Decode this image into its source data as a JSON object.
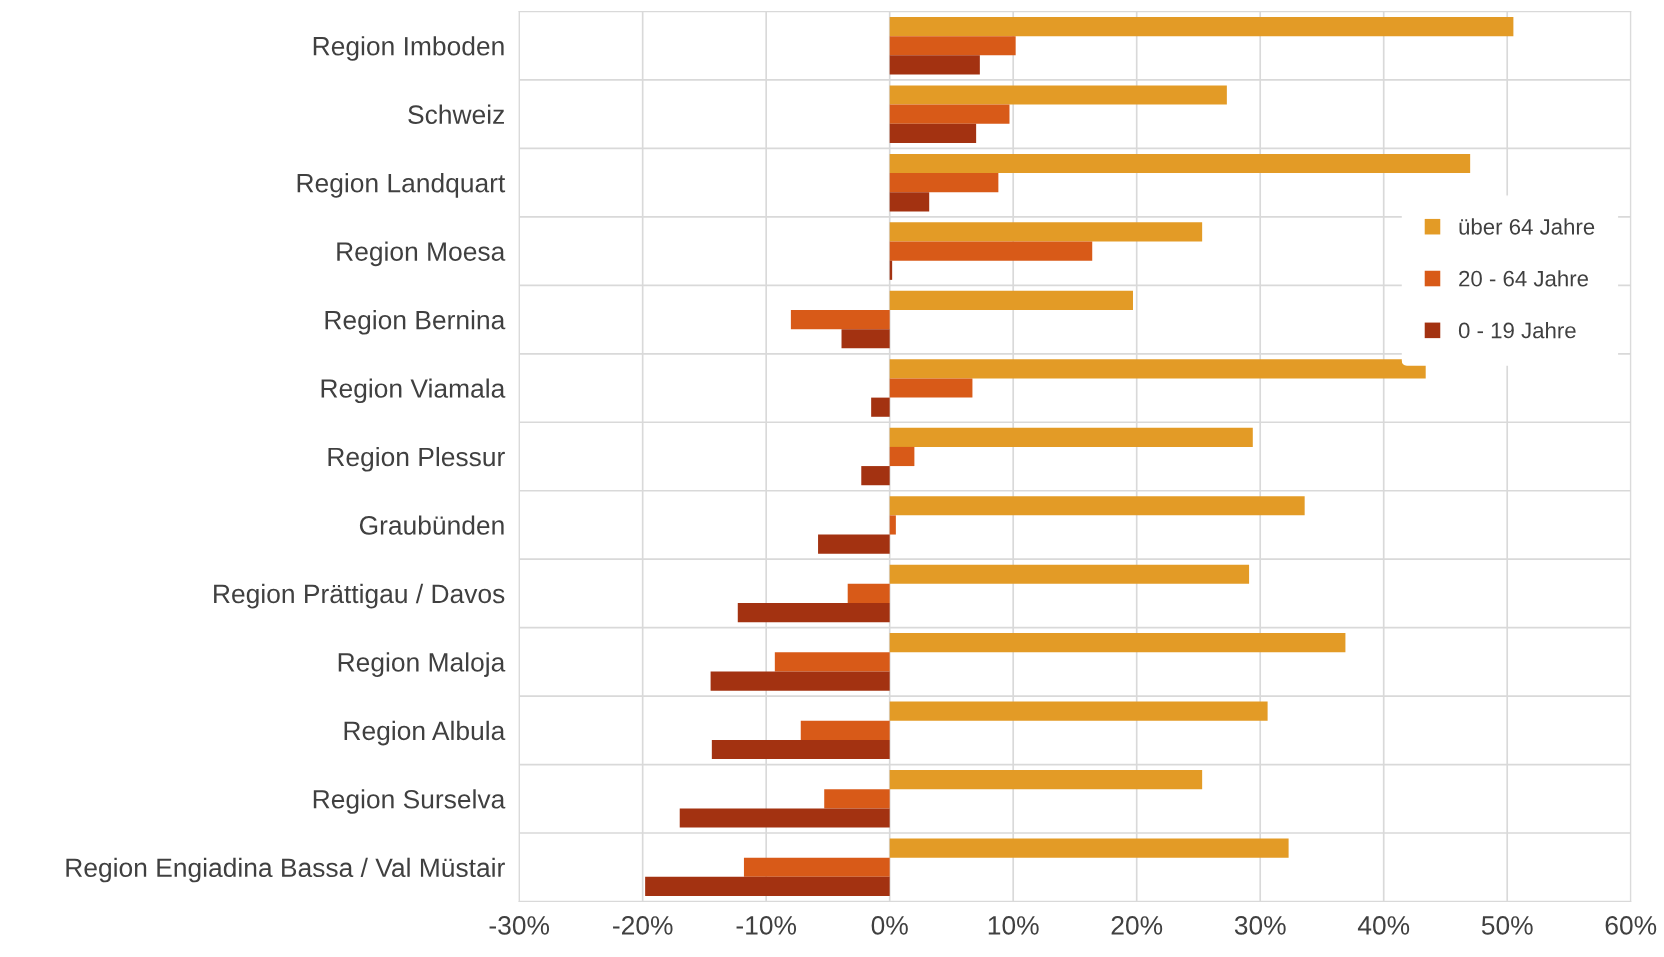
{
  "chart_data": {
    "type": "bar",
    "orientation": "horizontal",
    "categories": [
      "Region Imboden",
      "Schweiz",
      "Region Landquart",
      "Region Moesa",
      "Region Bernina",
      "Region Viamala",
      "Region Plessur",
      "Graubünden",
      "Region Prättigau / Davos",
      "Region Maloja",
      "Region Albula",
      "Region Surselva",
      "Region Engiadina Bassa / Val Müstair"
    ],
    "series": [
      {
        "name": "über 64 Jahre",
        "color": "#e39b26",
        "values": [
          50.5,
          27.3,
          47.0,
          25.3,
          19.7,
          43.4,
          29.4,
          33.6,
          29.1,
          36.9,
          30.6,
          25.3,
          32.3
        ]
      },
      {
        "name": "20 - 64 Jahre",
        "color": "#d85a18",
        "values": [
          10.2,
          9.7,
          8.8,
          16.4,
          -8.0,
          6.7,
          2.0,
          0.5,
          -3.4,
          -9.3,
          -7.2,
          -5.3,
          -11.8
        ]
      },
      {
        "name": "0 - 19 Jahre",
        "color": "#a33211",
        "values": [
          7.3,
          7.0,
          3.2,
          0.2,
          -3.9,
          -1.5,
          -2.3,
          -5.8,
          -12.3,
          -14.5,
          -14.4,
          -17.0,
          -19.8
        ]
      }
    ],
    "xlim": [
      -30,
      60
    ],
    "xticks": [
      {
        "value": -30,
        "label": "-30%"
      },
      {
        "value": -20,
        "label": "-20%"
      },
      {
        "value": -10,
        "label": "-10%"
      },
      {
        "value": 0,
        "label": "0%"
      },
      {
        "value": 10,
        "label": "10%"
      },
      {
        "value": 20,
        "label": "20%"
      },
      {
        "value": 30,
        "label": "30%"
      },
      {
        "value": 40,
        "label": "40%"
      },
      {
        "value": 50,
        "label": "50%"
      },
      {
        "value": 60,
        "label": "60%"
      }
    ],
    "grid": true,
    "legend": "right"
  }
}
